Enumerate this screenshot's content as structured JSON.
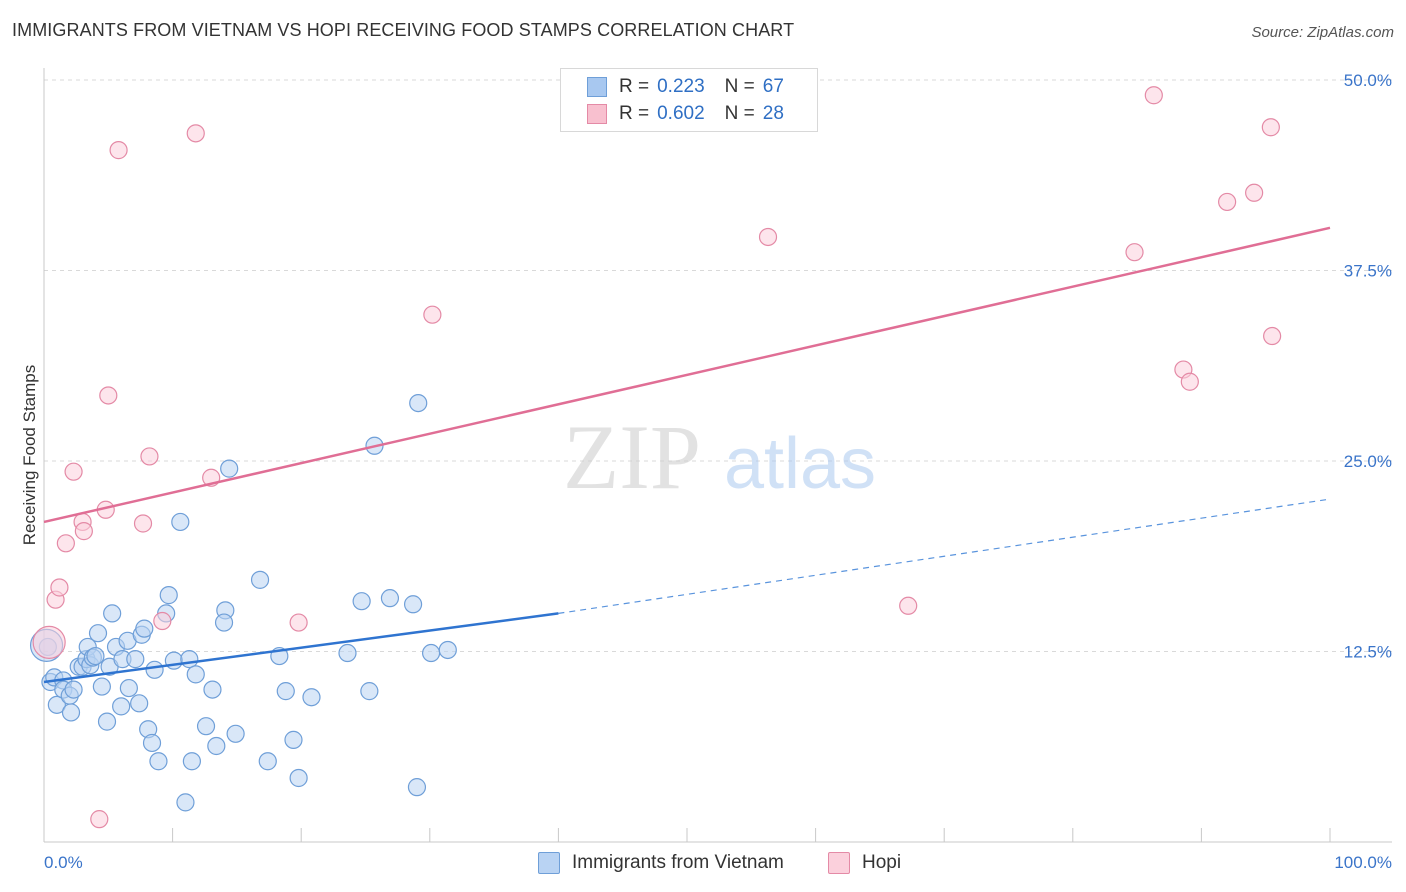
{
  "header": {
    "title": "IMMIGRANTS FROM VIETNAM VS HOPI RECEIVING FOOD STAMPS CORRELATION CHART",
    "source": "Source: ZipAtlas.com"
  },
  "watermark": {
    "zip": "ZIP",
    "atlas": "atlas"
  },
  "legend": {
    "rows": [
      {
        "r_label": "R =",
        "r_value": "0.223",
        "n_label": "N =",
        "n_value": "67",
        "color": "#a8c8f0",
        "border": "#6f9fd8"
      },
      {
        "r_label": "R =",
        "r_value": "0.602",
        "n_label": "N =",
        "n_value": "28",
        "color": "#f8c0cf",
        "border": "#e48aa6"
      }
    ]
  },
  "bottom_legend": [
    {
      "label": "Immigrants from Vietnam",
      "color": "#b9d3f3",
      "border": "#6f9fd8"
    },
    {
      "label": "Hopi",
      "color": "#fbd0dc",
      "border": "#e48aa6"
    }
  ],
  "chart_data": {
    "type": "scatter",
    "xlabel": "",
    "ylabel": "Receiving Food Stamps",
    "xlim": [
      0,
      100
    ],
    "ylim": [
      0,
      50
    ],
    "x_tick_labels": [
      "0.0%",
      "100.0%"
    ],
    "y_ticks": [
      12.5,
      25.0,
      37.5,
      50.0
    ],
    "y_tick_labels": [
      "12.5%",
      "25.0%",
      "37.5%",
      "50.0%"
    ],
    "grid": "horizontal dashed",
    "legend_position": "top-center",
    "series": [
      {
        "name": "Immigrants from Vietnam",
        "color": "#6f9fd8",
        "fill": "#b9d3f3",
        "trend": {
          "x0": 0,
          "y0": 10.5,
          "x1": 40,
          "y1": 15.0,
          "dash_to": 100,
          "dash_y": 22.5
        },
        "points": [
          [
            0.3,
            12.8
          ],
          [
            0.5,
            10.5
          ],
          [
            0.8,
            10.8
          ],
          [
            1.0,
            9.0
          ],
          [
            1.5,
            10.6
          ],
          [
            1.5,
            10.0
          ],
          [
            2.0,
            9.6
          ],
          [
            2.1,
            8.5
          ],
          [
            2.3,
            10.0
          ],
          [
            2.7,
            11.5
          ],
          [
            3.0,
            11.5
          ],
          [
            3.3,
            12.0
          ],
          [
            3.4,
            12.8
          ],
          [
            3.6,
            11.6
          ],
          [
            3.8,
            12.1
          ],
          [
            4.0,
            12.2
          ],
          [
            4.2,
            13.7
          ],
          [
            4.5,
            10.2
          ],
          [
            4.9,
            7.9
          ],
          [
            5.1,
            11.5
          ],
          [
            5.3,
            15.0
          ],
          [
            5.6,
            12.8
          ],
          [
            6.0,
            8.9
          ],
          [
            6.1,
            12.0
          ],
          [
            6.5,
            13.2
          ],
          [
            6.6,
            10.1
          ],
          [
            7.1,
            12.0
          ],
          [
            7.4,
            9.1
          ],
          [
            7.6,
            13.6
          ],
          [
            7.8,
            14.0
          ],
          [
            8.1,
            7.4
          ],
          [
            8.4,
            6.5
          ],
          [
            8.6,
            11.3
          ],
          [
            8.9,
            5.3
          ],
          [
            9.5,
            15.0
          ],
          [
            9.7,
            16.2
          ],
          [
            10.1,
            11.9
          ],
          [
            10.6,
            21.0
          ],
          [
            11.3,
            12.0
          ],
          [
            11.5,
            5.3
          ],
          [
            11.8,
            11.0
          ],
          [
            11.0,
            2.6
          ],
          [
            12.6,
            7.6
          ],
          [
            13.1,
            10.0
          ],
          [
            13.4,
            6.3
          ],
          [
            14.1,
            15.2
          ],
          [
            14.0,
            14.4
          ],
          [
            14.4,
            24.5
          ],
          [
            14.9,
            7.1
          ],
          [
            16.8,
            17.2
          ],
          [
            17.4,
            5.3
          ],
          [
            18.3,
            12.2
          ],
          [
            18.8,
            9.9
          ],
          [
            19.4,
            6.7
          ],
          [
            19.8,
            4.2
          ],
          [
            20.8,
            9.5
          ],
          [
            23.6,
            12.4
          ],
          [
            24.7,
            15.8
          ],
          [
            25.3,
            9.9
          ],
          [
            25.7,
            26.0
          ],
          [
            26.9,
            16.0
          ],
          [
            28.7,
            15.6
          ],
          [
            29.0,
            3.6
          ],
          [
            29.1,
            28.8
          ],
          [
            30.1,
            12.4
          ],
          [
            31.4,
            12.6
          ],
          [
            0.2,
            12.9
          ]
        ]
      },
      {
        "name": "Hopi",
        "color": "#e48aa6",
        "fill": "#fbd0dc",
        "trend": {
          "x0": 0,
          "y0": 21.0,
          "x1": 100,
          "y1": 40.3
        },
        "points": [
          [
            0.9,
            15.9
          ],
          [
            1.2,
            16.7
          ],
          [
            1.7,
            19.6
          ],
          [
            2.3,
            24.3
          ],
          [
            3.0,
            21.0
          ],
          [
            3.1,
            20.4
          ],
          [
            4.3,
            1.5
          ],
          [
            4.8,
            21.8
          ],
          [
            5.0,
            29.3
          ],
          [
            5.8,
            45.4
          ],
          [
            7.7,
            20.9
          ],
          [
            8.2,
            25.3
          ],
          [
            9.2,
            14.5
          ],
          [
            11.8,
            46.5
          ],
          [
            13.0,
            23.9
          ],
          [
            19.8,
            14.4
          ],
          [
            30.2,
            34.6
          ],
          [
            56.3,
            39.7
          ],
          [
            67.2,
            15.5
          ],
          [
            84.8,
            38.7
          ],
          [
            86.3,
            49.0
          ],
          [
            88.6,
            31.0
          ],
          [
            89.1,
            30.2
          ],
          [
            92.0,
            42.0
          ],
          [
            94.1,
            42.6
          ],
          [
            95.4,
            46.9
          ],
          [
            95.5,
            33.2
          ],
          [
            0.4,
            13.1
          ]
        ]
      }
    ]
  }
}
